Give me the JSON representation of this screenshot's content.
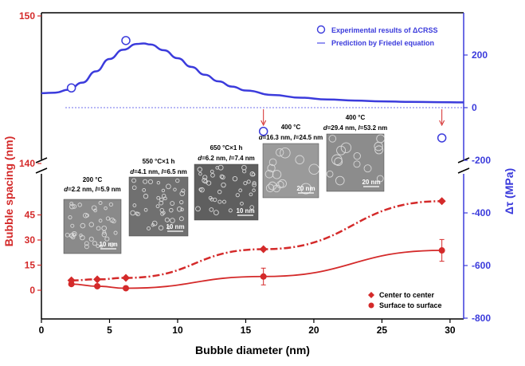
{
  "chart_data": {
    "type": "line",
    "xlabel": "Bubble diameter (nm)",
    "ylabel_left": "Bubble spacing (nm)",
    "ylabel_right": "Δτ (MPa)",
    "x_range": [
      0,
      31
    ],
    "x_ticks": [
      "0",
      "5",
      "10",
      "15",
      "20",
      "25",
      "30"
    ],
    "left_ticks_top": [
      "150",
      "140"
    ],
    "left_ticks_bottom": [
      "45",
      "30",
      "15",
      "0"
    ],
    "right_ticks": [
      "200",
      "0",
      "-200",
      "-400",
      "-600",
      "-800"
    ],
    "colors": {
      "spacing": "#d42a2a",
      "strength": "#3b3bdc",
      "prediction": "#7070ee"
    },
    "series": [
      {
        "name": "Experimental results of ΔCRSS",
        "axis": "right",
        "marker": "open-circle",
        "x": [
          2.2,
          6.2,
          16.3,
          29.4
        ],
        "y": [
          75,
          255,
          -90,
          -115
        ]
      },
      {
        "name": "Prediction by Friedel equation",
        "axis": "right",
        "marker": "line",
        "x": [
          0,
          1,
          2,
          3,
          4,
          5,
          6,
          7,
          7.5,
          8,
          9,
          10,
          11,
          12,
          13,
          14,
          15,
          17,
          19,
          21,
          23,
          25,
          27,
          29,
          31
        ],
        "y": [
          55,
          57,
          68,
          95,
          138,
          185,
          220,
          242,
          244,
          240,
          218,
          188,
          155,
          125,
          100,
          80,
          65,
          48,
          38,
          31,
          27,
          24,
          22,
          21,
          20
        ]
      },
      {
        "name": "Center to center",
        "axis": "left",
        "marker": "diamond",
        "x": [
          2.2,
          4.1,
          6.2,
          16.3,
          29.4
        ],
        "y": [
          5.9,
          6.5,
          7.4,
          24.5,
          53.2
        ]
      },
      {
        "name": "Surface to surface",
        "axis": "left",
        "marker": "filled-circle",
        "x": [
          2.2,
          4.1,
          6.2,
          16.3,
          29.4
        ],
        "y": [
          3.7,
          2.4,
          1.2,
          8.2,
          23.8
        ],
        "error": [
          null,
          null,
          null,
          5,
          6.5
        ]
      }
    ],
    "insets": [
      {
        "temp": "200 °C",
        "d": "2.2 nm",
        "l": "5.9 nm",
        "scale": "10 nm"
      },
      {
        "temp": "550 °C×1 h",
        "d": "4.1 nm",
        "l": "6.5 nm",
        "scale": "10 nm"
      },
      {
        "temp": "650 °C×1 h",
        "d": "6.2 nm",
        "l": "7.4 nm",
        "scale": "10 nm"
      },
      {
        "temp": "400 °C",
        "d": "16.3 nm",
        "l": "24.5 nm",
        "scale": "20 nm"
      },
      {
        "temp": "400 °C",
        "d": "29.4 nm",
        "l": "53.2 nm",
        "scale": "20 nm"
      }
    ]
  }
}
